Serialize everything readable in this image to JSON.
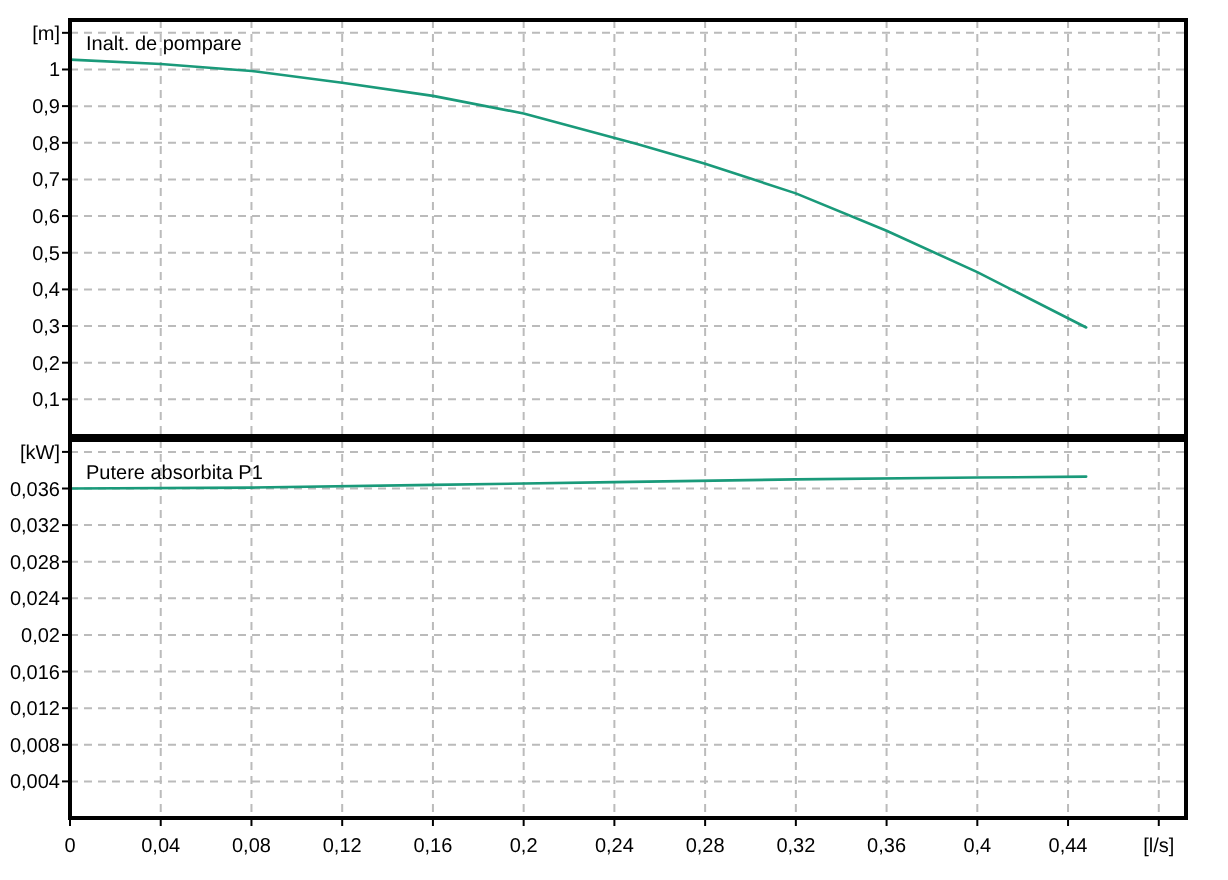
{
  "chart_data": [
    {
      "type": "line",
      "x": [
        0,
        0.04,
        0.08,
        0.12,
        0.16,
        0.2,
        0.25,
        0.28,
        0.32,
        0.36,
        0.4,
        0.448
      ],
      "series": [
        {
          "name": "Inalt. de pompare",
          "color": "#1a9a7a",
          "values": [
            1.027,
            1.015,
            0.996,
            0.964,
            0.928,
            0.88,
            0.797,
            0.743,
            0.662,
            0.56,
            0.447,
            0.296
          ]
        }
      ],
      "xlim": [
        0,
        0.492
      ],
      "xticks": [
        {
          "value": 0,
          "label": null
        },
        {
          "value": 0.04,
          "label": null
        },
        {
          "value": 0.08,
          "label": null
        },
        {
          "value": 0.12,
          "label": null
        },
        {
          "value": 0.16,
          "label": null
        },
        {
          "value": 0.2,
          "label": null
        },
        {
          "value": 0.24,
          "label": null
        },
        {
          "value": 0.28,
          "label": null
        },
        {
          "value": 0.32,
          "label": null
        },
        {
          "value": 0.36,
          "label": null
        },
        {
          "value": 0.4,
          "label": null
        },
        {
          "value": 0.44,
          "label": null
        },
        {
          "value": 0.48,
          "label": null
        }
      ],
      "ylim": [
        0,
        1.135
      ],
      "yticks": [
        {
          "value": 0.1,
          "label": "0,1"
        },
        {
          "value": 0.2,
          "label": "0,2"
        },
        {
          "value": 0.3,
          "label": "0,3"
        },
        {
          "value": 0.4,
          "label": "0,4"
        },
        {
          "value": 0.5,
          "label": "0,5"
        },
        {
          "value": 0.6,
          "label": "0,6"
        },
        {
          "value": 0.7,
          "label": "0,7"
        },
        {
          "value": 0.8,
          "label": "0,8"
        },
        {
          "value": 0.9,
          "label": "0,9"
        },
        1,
        {
          "value": 1.1,
          "label": "[m]"
        }
      ],
      "grid": true,
      "tick_labels": "y",
      "marker": "none",
      "line_style": "solid"
    },
    {
      "type": "line",
      "x": [
        0,
        0.08,
        0.16,
        0.24,
        0.32,
        0.4,
        0.448
      ],
      "series": [
        {
          "name": "Putere absorbita P1",
          "color": "#1a9a7a",
          "values": [
            0.036,
            0.0361,
            0.0364,
            0.0367,
            0.037,
            0.0372,
            0.0373
          ]
        }
      ],
      "xlim": [
        0,
        0.492
      ],
      "xticks": [
        0,
        {
          "value": 0.04,
          "label": "0,04"
        },
        {
          "value": 0.08,
          "label": "0,08"
        },
        {
          "value": 0.12,
          "label": "0,12"
        },
        {
          "value": 0.16,
          "label": "0,16"
        },
        {
          "value": 0.2,
          "label": "0,2"
        },
        {
          "value": 0.24,
          "label": "0,24"
        },
        {
          "value": 0.28,
          "label": "0,28"
        },
        {
          "value": 0.32,
          "label": "0,32"
        },
        {
          "value": 0.36,
          "label": "0,36"
        },
        {
          "value": 0.4,
          "label": "0,4"
        },
        {
          "value": 0.44,
          "label": "0,44"
        },
        {
          "value": 0.48,
          "label": "[l/s]"
        }
      ],
      "ylim": [
        0,
        0.0413
      ],
      "yticks": [
        {
          "value": 0.004,
          "label": "0,004"
        },
        {
          "value": 0.008,
          "label": "0,008"
        },
        {
          "value": 0.012,
          "label": "0,012"
        },
        {
          "value": 0.016,
          "label": "0,016"
        },
        {
          "value": 0.02,
          "label": "0,02"
        },
        {
          "value": 0.024,
          "label": "0,024"
        },
        {
          "value": 0.028,
          "label": "0,028"
        },
        {
          "value": 0.032,
          "label": "0,032"
        },
        {
          "value": 0.036,
          "label": "0,036"
        },
        {
          "value": 0.04,
          "label": "[kW]"
        }
      ],
      "grid": true,
      "marker": "none",
      "line_style": "solid"
    }
  ]
}
